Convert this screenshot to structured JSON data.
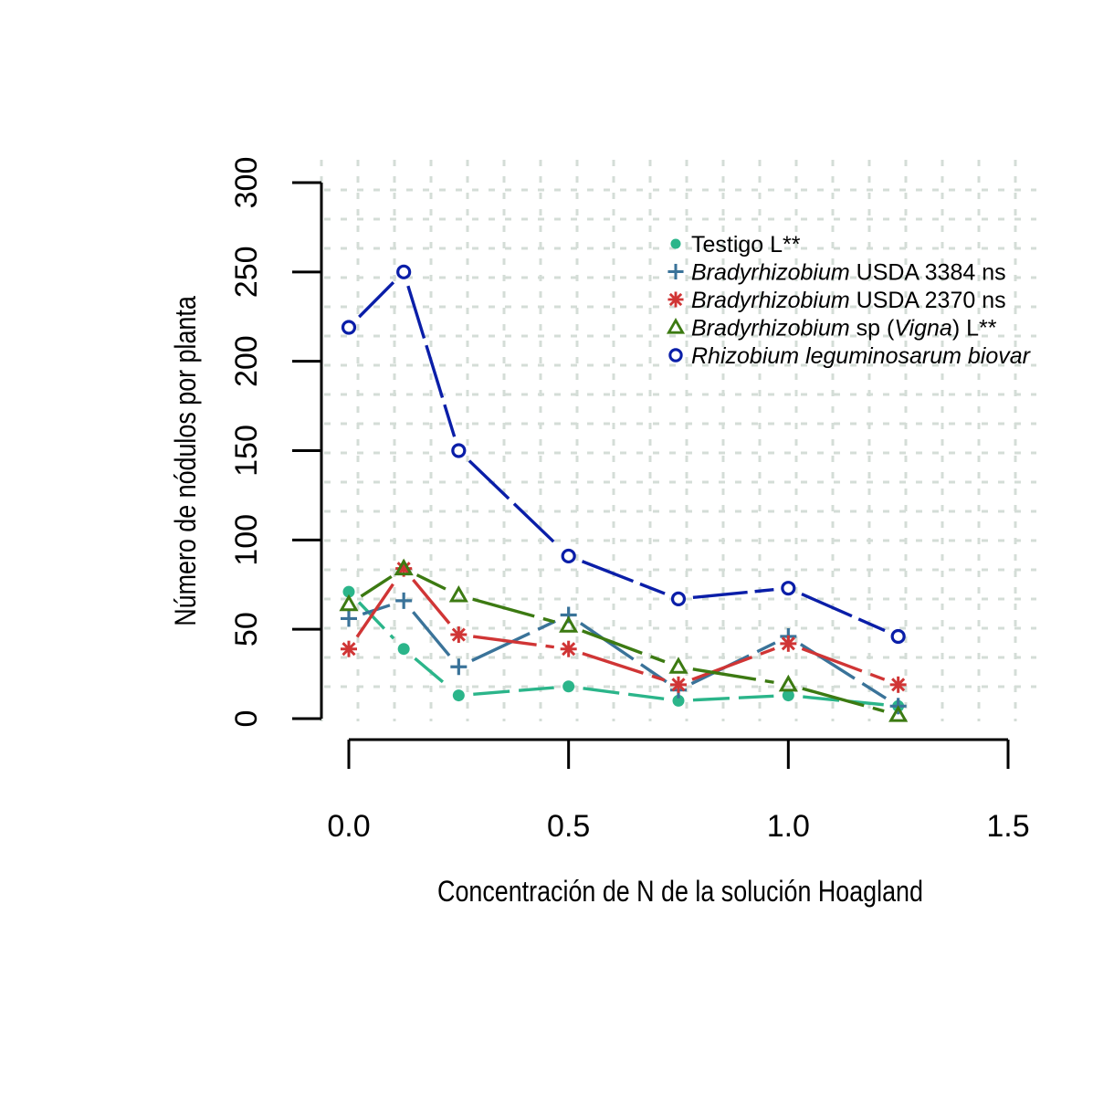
{
  "chart_data": {
    "type": "line",
    "title": "",
    "xlabel": "Concentración de N de la solución Hoagland",
    "ylabel": "Número de nódulos por planta",
    "xlim": [
      0,
      1.5
    ],
    "ylim": [
      0,
      300
    ],
    "x_ticks": [
      "0.0",
      "0.5",
      "1.0",
      "1.5"
    ],
    "y_ticks": [
      "0",
      "50",
      "100",
      "150",
      "200",
      "250",
      "300"
    ],
    "x": [
      0,
      0.125,
      0.25,
      0.5,
      0.75,
      1.0,
      1.25
    ],
    "grid": true,
    "legend_position": "top-right",
    "series": [
      {
        "name": "Testigo L**",
        "name_parts": [
          {
            "text": "Testigo L**",
            "italic": false
          }
        ],
        "color": "#2bb58a",
        "marker": "filled-circle",
        "values": [
          71,
          39,
          13,
          18,
          10,
          13,
          7
        ]
      },
      {
        "name": "Bradyrhizobium USDA 3384 ns",
        "name_parts": [
          {
            "text": "Bradyrhizobium",
            "italic": true
          },
          {
            "text": " USDA 3384 ns",
            "italic": false
          }
        ],
        "color": "#3a7399",
        "marker": "plus",
        "values": [
          56,
          66,
          29,
          58,
          16,
          46,
          7
        ]
      },
      {
        "name": "Bradyrhizobium USDA 2370 ns",
        "name_parts": [
          {
            "text": "Bradyrhizobium",
            "italic": true
          },
          {
            "text": " USDA 2370 ns",
            "italic": false
          }
        ],
        "color": "#d03535",
        "marker": "asterisk",
        "values": [
          39,
          84,
          47,
          39,
          19,
          42,
          19
        ]
      },
      {
        "name": "Bradyrhizobium sp (Vigna) L**",
        "name_parts": [
          {
            "text": "Bradyrhizobium",
            "italic": true
          },
          {
            "text": " sp (",
            "italic": false
          },
          {
            "text": "Vigna",
            "italic": true
          },
          {
            "text": ") L**",
            "italic": false
          }
        ],
        "color": "#3c7a12",
        "marker": "triangle",
        "values": [
          64,
          84,
          69,
          52,
          29,
          19,
          2
        ]
      },
      {
        "name": "Rhizobium leguminosarum biovar",
        "name_parts": [
          {
            "text": "Rhizobium leguminosarum biovar",
            "italic": true
          }
        ],
        "color": "#0a1ea8",
        "marker": "open-circle",
        "values": [
          219,
          250,
          150,
          91,
          67,
          73,
          46
        ]
      }
    ]
  }
}
